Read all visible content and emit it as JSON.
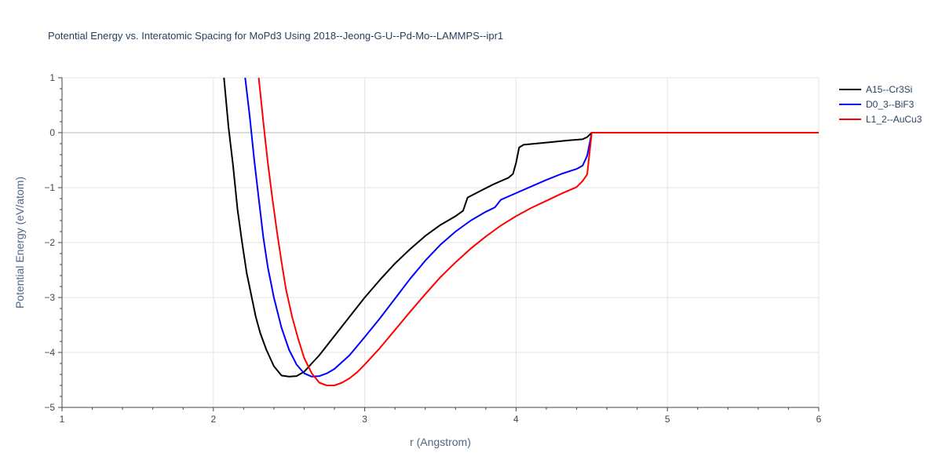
{
  "chart_data": {
    "type": "line",
    "title": "Potential Energy vs. Interatomic Spacing for MoPd3 Using 2018--Jeong-G-U--Pd-Mo--LAMMPS--ipr1",
    "xlabel": "r (Angstrom)",
    "ylabel": "Potential Energy (eV/atom)",
    "xlim": [
      1,
      6
    ],
    "ylim": [
      -5,
      1
    ],
    "xticks": [
      1,
      2,
      3,
      4,
      5,
      6
    ],
    "xtick_labels": [
      "1",
      "2",
      "3",
      "4",
      "5",
      "6"
    ],
    "yticks": [
      1,
      0,
      -1,
      -2,
      -3,
      -4,
      -5
    ],
    "ytick_labels": [
      "1",
      "0",
      "−1",
      "−2",
      "−3",
      "−4",
      "−5"
    ],
    "grid": true,
    "legend_position": "top-right",
    "series": [
      {
        "name": "A15--Cr3Si",
        "color": "#000000",
        "x": [
          2.07,
          2.1,
          2.13,
          2.16,
          2.19,
          2.22,
          2.25,
          2.28,
          2.31,
          2.35,
          2.4,
          2.45,
          2.5,
          2.55,
          2.6,
          2.65,
          2.7,
          2.8,
          2.9,
          3.0,
          3.1,
          3.2,
          3.3,
          3.4,
          3.5,
          3.6,
          3.65,
          3.68,
          3.75,
          3.85,
          3.95,
          3.98,
          4.0,
          4.02,
          4.05,
          4.2,
          4.35,
          4.44,
          4.47,
          4.5,
          4.6,
          5.0,
          6.0
        ],
        "y": [
          1.0,
          0.1,
          -0.6,
          -1.4,
          -2.0,
          -2.55,
          -2.95,
          -3.35,
          -3.65,
          -3.95,
          -4.25,
          -4.42,
          -4.44,
          -4.43,
          -4.35,
          -4.2,
          -4.05,
          -3.7,
          -3.35,
          -3.0,
          -2.68,
          -2.38,
          -2.12,
          -1.88,
          -1.68,
          -1.52,
          -1.42,
          -1.18,
          -1.08,
          -0.94,
          -0.82,
          -0.75,
          -0.55,
          -0.27,
          -0.22,
          -0.18,
          -0.14,
          -0.12,
          -0.08,
          0.0,
          0.0,
          0.0,
          0.0
        ]
      },
      {
        "name": "D0_3--BiF3",
        "color": "#0000ff",
        "x": [
          2.21,
          2.24,
          2.27,
          2.3,
          2.33,
          2.36,
          2.4,
          2.45,
          2.5,
          2.55,
          2.6,
          2.65,
          2.7,
          2.75,
          2.8,
          2.9,
          3.0,
          3.1,
          3.2,
          3.3,
          3.4,
          3.5,
          3.6,
          3.7,
          3.8,
          3.86,
          3.9,
          4.0,
          4.1,
          4.2,
          4.3,
          4.4,
          4.44,
          4.47,
          4.5,
          4.6,
          5.0,
          6.0
        ],
        "y": [
          1.0,
          0.3,
          -0.5,
          -1.2,
          -1.9,
          -2.45,
          -3.0,
          -3.55,
          -3.95,
          -4.22,
          -4.38,
          -4.44,
          -4.43,
          -4.38,
          -4.3,
          -4.05,
          -3.72,
          -3.38,
          -3.02,
          -2.66,
          -2.33,
          -2.04,
          -1.8,
          -1.6,
          -1.44,
          -1.36,
          -1.22,
          -1.1,
          -0.98,
          -0.86,
          -0.75,
          -0.66,
          -0.6,
          -0.42,
          0.0,
          0.0,
          0.0,
          0.0
        ],
        "_note": ""
      },
      {
        "name": "L1_2--AuCu3",
        "color": "#ff0000",
        "x": [
          2.3,
          2.33,
          2.36,
          2.39,
          2.42,
          2.45,
          2.48,
          2.52,
          2.56,
          2.6,
          2.65,
          2.7,
          2.75,
          2.8,
          2.85,
          2.9,
          2.95,
          3.0,
          3.1,
          3.2,
          3.3,
          3.4,
          3.5,
          3.6,
          3.7,
          3.8,
          3.9,
          4.0,
          4.1,
          4.2,
          4.3,
          4.4,
          4.44,
          4.47,
          4.5,
          4.6,
          5.0,
          6.0
        ],
        "y": [
          1.0,
          0.2,
          -0.55,
          -1.2,
          -1.8,
          -2.35,
          -2.85,
          -3.35,
          -3.75,
          -4.1,
          -4.38,
          -4.55,
          -4.6,
          -4.6,
          -4.55,
          -4.47,
          -4.36,
          -4.22,
          -3.92,
          -3.59,
          -3.26,
          -2.94,
          -2.63,
          -2.36,
          -2.11,
          -1.89,
          -1.69,
          -1.52,
          -1.37,
          -1.24,
          -1.11,
          -0.99,
          -0.88,
          -0.76,
          0.0,
          0.0,
          0.0,
          0.0
        ]
      }
    ]
  }
}
